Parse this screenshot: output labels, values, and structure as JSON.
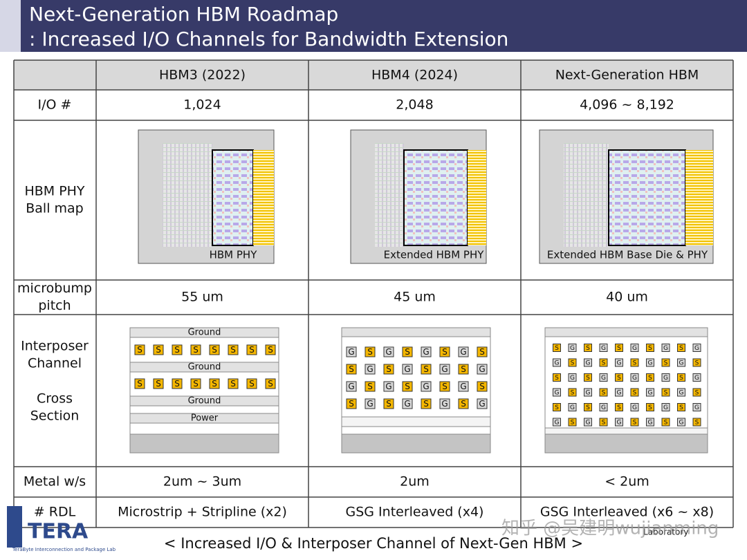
{
  "header": {
    "title": "Next-Generation HBM Roadmap",
    "subtitle": ": Increased I/O Channels for Bandwidth Extension"
  },
  "table": {
    "headers": [
      "HBM3 (2022)",
      "HBM4 (2024)",
      "Next-Generation HBM"
    ],
    "rows": [
      {
        "label": [
          "I/O #"
        ],
        "cells": [
          "1,024",
          "2,048",
          "4,096 ~ 8,192"
        ]
      },
      {
        "label": [
          "HBM PHY",
          "Ball map"
        ]
      },
      {
        "label": [
          "microbump",
          "pitch"
        ],
        "cells": [
          "55 um",
          "45 um",
          "40 um"
        ]
      },
      {
        "label": [
          "Interposer",
          "Channel",
          "Cross",
          "Section"
        ]
      },
      {
        "label": [
          "Metal w/s"
        ],
        "cells": [
          "2um ~ 3um",
          "2um",
          "< 2um"
        ]
      },
      {
        "label": [
          "# RDL"
        ],
        "cells": [
          "Microstrip + Stripline (x2)",
          "GSG Interleaved (x4)",
          "GSG Interleaved (x6 ~ x8)"
        ]
      }
    ]
  },
  "ballmaps": [
    "HBM PHY",
    "Extended HBM PHY",
    "Extended HBM Base Die & PHY"
  ],
  "cross_sections": [
    {
      "layers": [
        "Ground",
        "Ground",
        "Ground",
        "Power"
      ],
      "rows": [
        [
          "S",
          "S",
          "S",
          "S",
          "S",
          "S",
          "S",
          "S"
        ],
        [
          "S",
          "S",
          "S",
          "S",
          "S",
          "S",
          "S",
          "S"
        ]
      ]
    },
    {
      "rows": [
        [
          "G",
          "S",
          "G",
          "S",
          "G",
          "S",
          "G",
          "S"
        ],
        [
          "S",
          "G",
          "S",
          "G",
          "S",
          "G",
          "S",
          "G"
        ],
        [
          "G",
          "S",
          "G",
          "S",
          "G",
          "S",
          "G",
          "S"
        ],
        [
          "S",
          "G",
          "S",
          "G",
          "S",
          "G",
          "S",
          "G"
        ]
      ]
    },
    {
      "rows": [
        [
          "S",
          "G",
          "S",
          "G",
          "S",
          "G",
          "S",
          "G",
          "S",
          "G"
        ],
        [
          "G",
          "S",
          "G",
          "S",
          "G",
          "S",
          "G",
          "S",
          "G",
          "S"
        ],
        [
          "S",
          "G",
          "S",
          "G",
          "S",
          "G",
          "S",
          "G",
          "S",
          "G"
        ],
        [
          "G",
          "S",
          "G",
          "S",
          "G",
          "S",
          "G",
          "S",
          "G",
          "S"
        ],
        [
          "S",
          "G",
          "S",
          "G",
          "S",
          "G",
          "S",
          "G",
          "S",
          "G"
        ],
        [
          "G",
          "S",
          "G",
          "S",
          "G",
          "S",
          "G",
          "S",
          "G",
          "S"
        ]
      ]
    }
  ],
  "caption": "< Increased I/O & Interposer Channel of Next-Gen HBM >",
  "logo": {
    "name": "TERA",
    "lab": "TeraByte Interconnection and Package Lab",
    "tag": "Laboratory"
  },
  "watermark": "知乎 @吴建明wujianming"
}
